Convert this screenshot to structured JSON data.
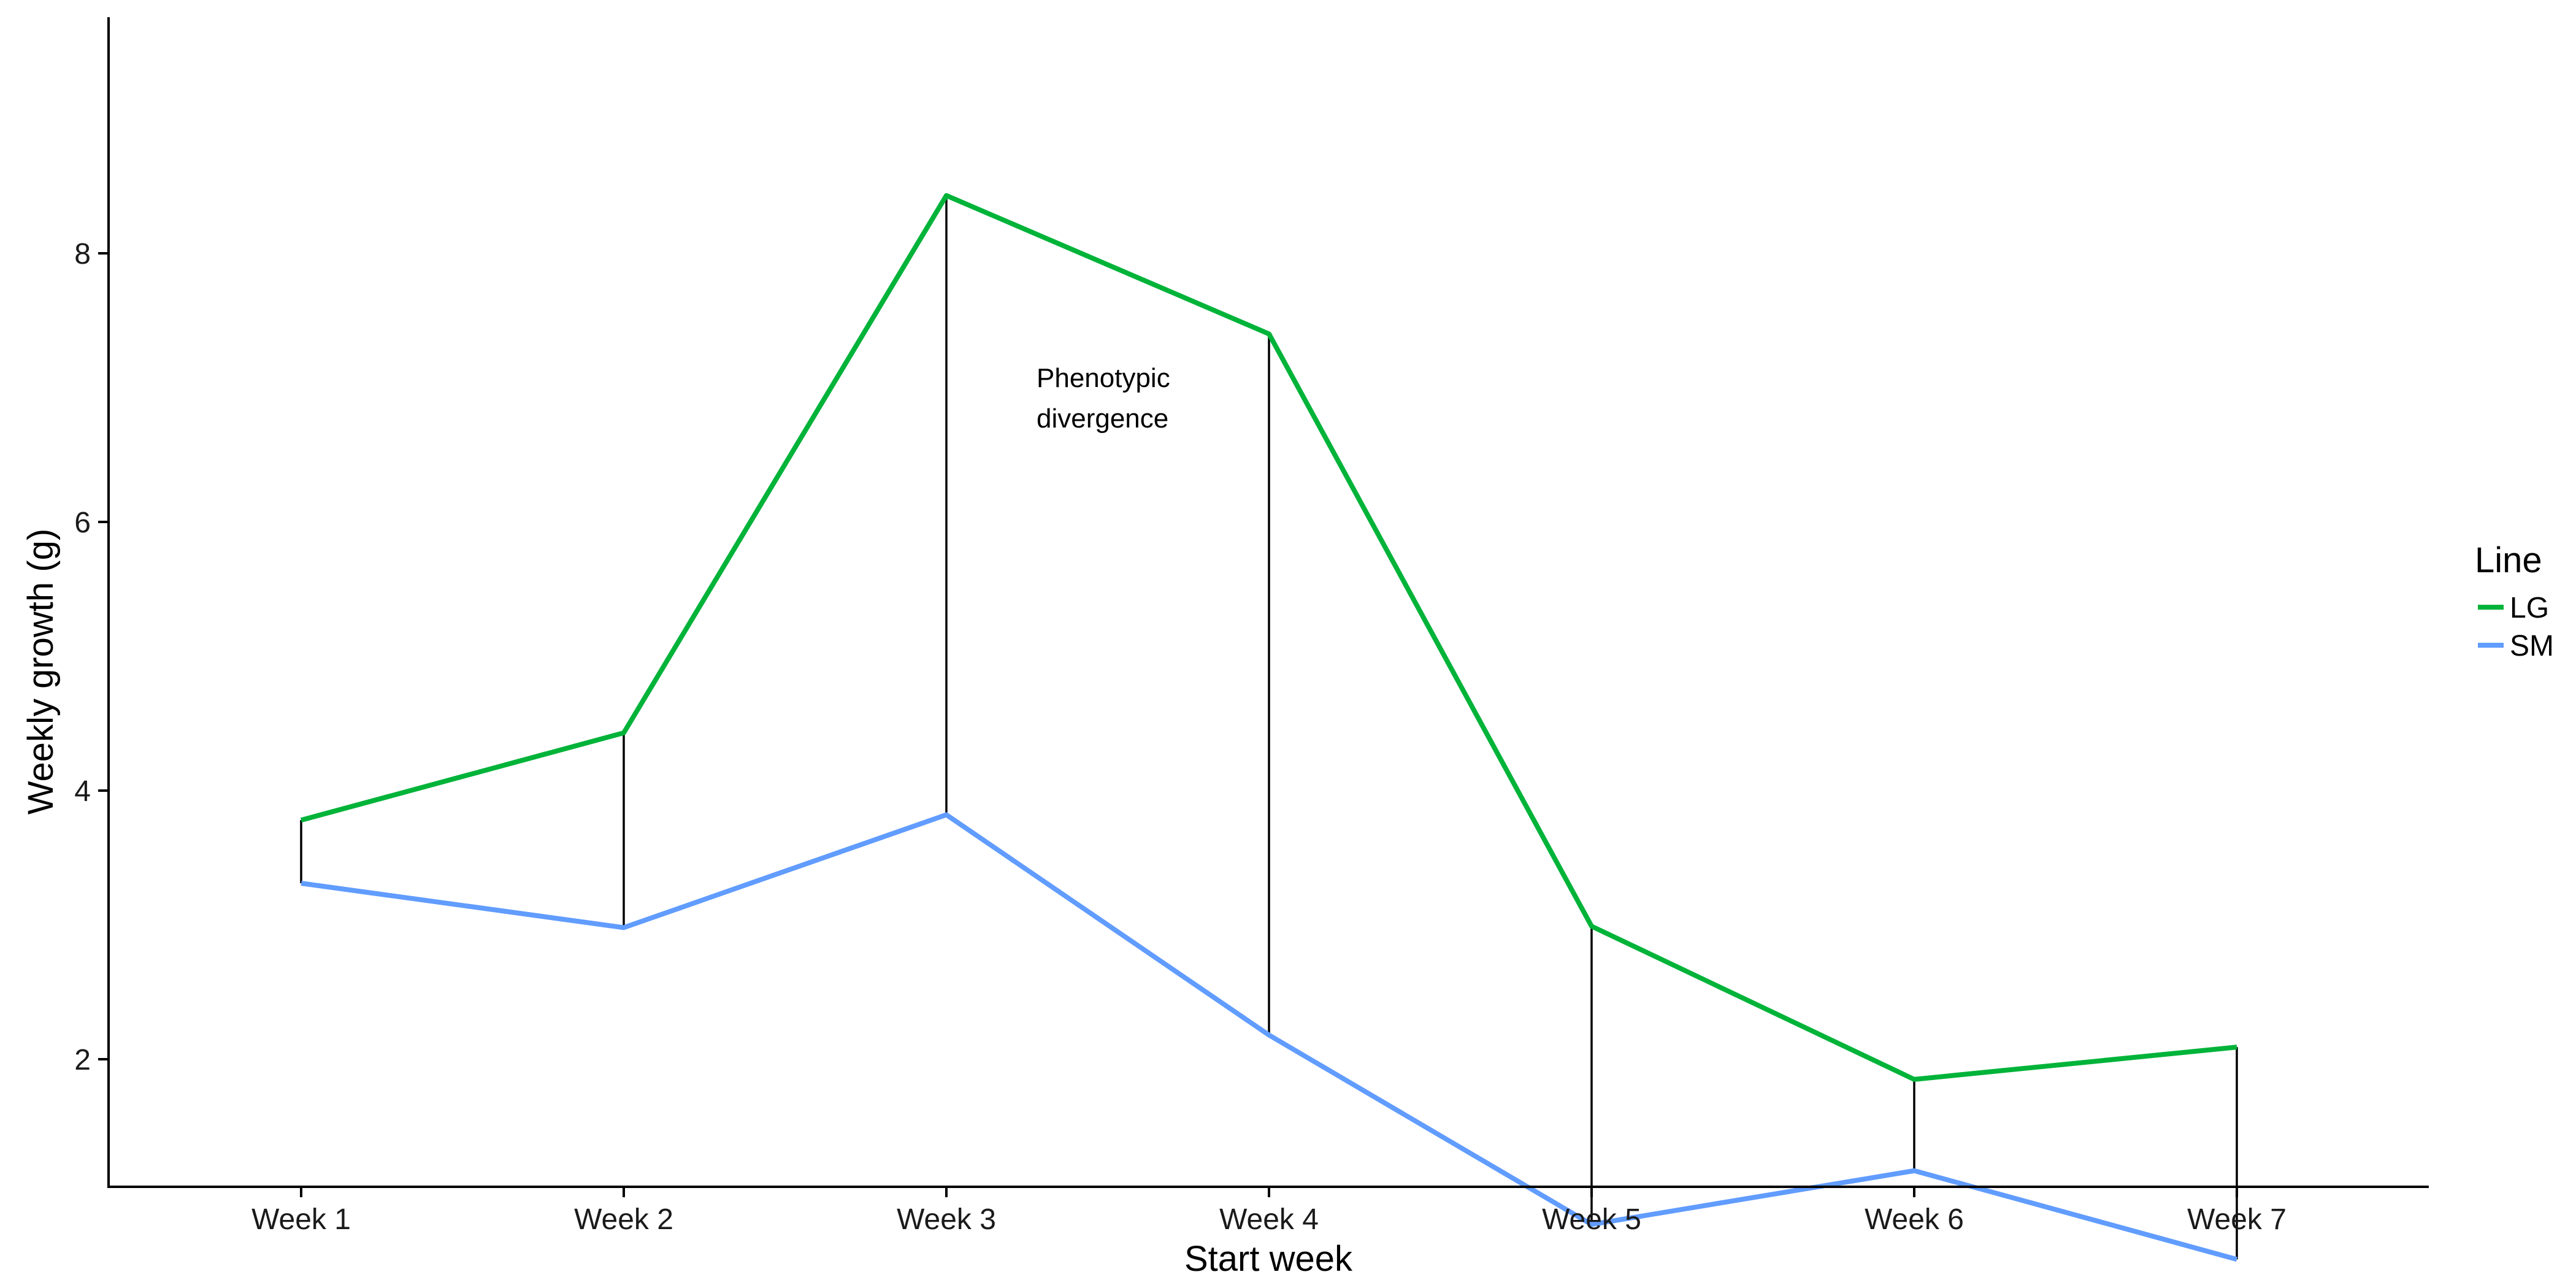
{
  "chart_data": {
    "type": "line",
    "title": "",
    "xlabel": "Start week",
    "ylabel": "Weekly growth (g)",
    "categories": [
      "Week 1",
      "Week 2",
      "Week 3",
      "Week 4",
      "Week 5",
      "Week 6",
      "Week 7"
    ],
    "ylim": [
      0,
      8.8
    ],
    "yticks": [
      2,
      4,
      6,
      8
    ],
    "grid": false,
    "legend": {
      "title": "Line",
      "placement": "right"
    },
    "series": [
      {
        "name": "LG",
        "color": "#00b339",
        "values": [
          3.78,
          4.43,
          8.43,
          7.4,
          2.99,
          1.85,
          2.09
        ]
      },
      {
        "name": "SM",
        "color": "#619cff",
        "values": [
          3.31,
          2.98,
          3.82,
          2.18,
          0.77,
          1.17,
          0.51
        ]
      }
    ],
    "connectors": "vertical lines between LG and SM at each week",
    "annotation": {
      "lines": [
        "Phenotypic",
        "divergence"
      ]
    }
  }
}
